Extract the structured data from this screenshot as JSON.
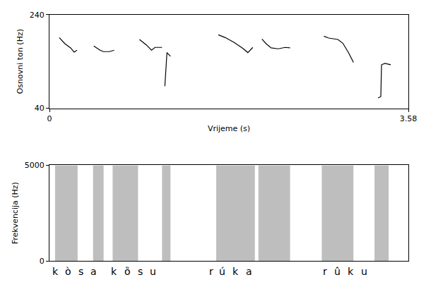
{
  "chart_data": [
    {
      "type": "line",
      "x_label": "Vrijeme (s)",
      "y_label": "Osnovni ton (Hz)",
      "x": [
        0.098,
        0.154,
        0.211,
        0.246,
        0.274,
        null,
        0.442,
        0.505,
        0.54,
        0.596,
        0.646,
        null,
        0.898,
        0.968,
        1.018,
        1.053,
        1.123,
        null,
        1.151,
        1.172,
        1.207,
        null,
        1.684,
        1.754,
        1.839,
        1.923,
        1.979,
        2.028,
        null,
        2.119,
        2.161,
        2.211,
        2.281,
        2.351,
        2.4,
        null,
        2.737,
        2.786,
        2.877,
        2.926,
        2.982,
        3.032,
        null,
        3.277,
        3.305,
        3.312,
        3.347,
        3.404
      ],
      "values": [
        191,
        178,
        169,
        160,
        164,
        null,
        173,
        164,
        161,
        161,
        164,
        null,
        187,
        175,
        164,
        170,
        170,
        null,
        87,
        159,
        151,
        null,
        197,
        191,
        181,
        169,
        159,
        170,
        null,
        188,
        178,
        169,
        167,
        170,
        169,
        null,
        194,
        190,
        187,
        179,
        159,
        138,
        null,
        62,
        65,
        133,
        136,
        133
      ],
      "color": "#000000",
      "xlim": [
        0,
        3.58
      ],
      "ylim": [
        40,
        240
      ],
      "xticks": [
        0,
        3.58
      ],
      "yticks": [
        40,
        240
      ],
      "grid": false
    },
    {
      "type": "spectrogram",
      "y_label": "Frekvencija (Hz)",
      "xlim": [
        0,
        3.58
      ],
      "ylim": [
        0,
        5000
      ],
      "yticks": [
        0,
        5000
      ],
      "tick_labels": "y",
      "grid": false,
      "color": "#6e6e6e",
      "voiced_intervals": [
        [
          0.056,
          0.281
        ],
        [
          0.435,
          0.54
        ],
        [
          0.63,
          0.884
        ],
        [
          1.123,
          1.207
        ],
        [
          1.663,
          2.049
        ],
        [
          2.084,
          2.4
        ],
        [
          2.716,
          3.032
        ],
        [
          3.242,
          3.383
        ]
      ],
      "segments": [
        {
          "label": "k",
          "time": 0.063
        },
        {
          "label": "ò",
          "time": 0.189
        },
        {
          "label": "s",
          "time": 0.316
        },
        {
          "label": "a",
          "time": 0.442
        },
        {
          "label": "k",
          "time": 0.646
        },
        {
          "label": "ȍ",
          "time": 0.779
        },
        {
          "label": "s",
          "time": 0.905
        },
        {
          "label": "u",
          "time": 1.032
        },
        {
          "label": "r",
          "time": 1.614
        },
        {
          "label": "ú",
          "time": 1.726
        },
        {
          "label": "k",
          "time": 1.86
        },
        {
          "label": "a",
          "time": 1.993
        },
        {
          "label": "r",
          "time": 2.751
        },
        {
          "label": "û",
          "time": 2.87
        },
        {
          "label": "k",
          "time": 3.004
        },
        {
          "label": "u",
          "time": 3.137
        }
      ]
    }
  ]
}
